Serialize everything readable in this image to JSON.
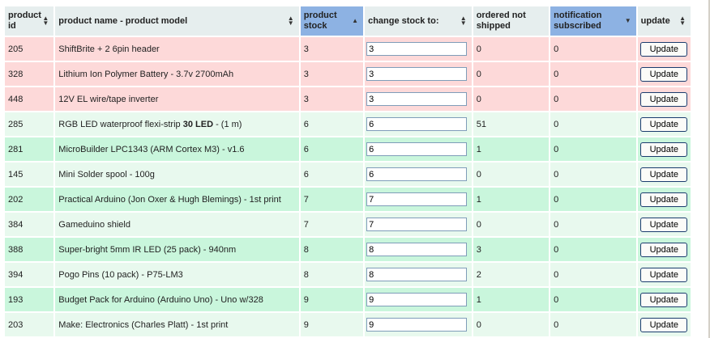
{
  "columns": {
    "product_id": "product id",
    "product_name": "product name - product model",
    "product_stock": "product stock",
    "change_stock": "change stock to:",
    "ordered_not_shipped": "ordered not shipped",
    "notification_subscribed": "notification subscribed",
    "update": "update"
  },
  "update_label": "Update",
  "row_colors": {
    "low": "#fdd9d9",
    "ok_light": "#e8f9ee",
    "ok_dark": "#c9f6dc",
    "sorted_header": "#8db2e3"
  },
  "rows": [
    {
      "id": "205",
      "name": "ShiftBrite + 2 6pin header",
      "name_bold": "",
      "name_tail": "",
      "stock": "3",
      "change": "3",
      "ordered": "0",
      "notify": "0",
      "status": "low"
    },
    {
      "id": "328",
      "name": "Lithium Ion Polymer Battery - 3.7v 2700mAh",
      "name_bold": "",
      "name_tail": "",
      "stock": "3",
      "change": "3",
      "ordered": "0",
      "notify": "0",
      "status": "low"
    },
    {
      "id": "448",
      "name": "12V EL wire/tape inverter",
      "name_bold": "",
      "name_tail": "",
      "stock": "3",
      "change": "3",
      "ordered": "0",
      "notify": "0",
      "status": "low"
    },
    {
      "id": "285",
      "name": "RGB LED waterproof flexi-strip ",
      "name_bold": "30 LED",
      "name_tail": " - (1 m)",
      "stock": "6",
      "change": "6",
      "ordered": "51",
      "notify": "0",
      "status": "ok"
    },
    {
      "id": "281",
      "name": "MicroBuilder LPC1343 (ARM Cortex M3) - v1.6",
      "name_bold": "",
      "name_tail": "",
      "stock": "6",
      "change": "6",
      "ordered": "1",
      "notify": "0",
      "status": "ok"
    },
    {
      "id": "145",
      "name": "Mini Solder spool - 100g",
      "name_bold": "",
      "name_tail": "",
      "stock": "6",
      "change": "6",
      "ordered": "0",
      "notify": "0",
      "status": "ok"
    },
    {
      "id": "202",
      "name": "Practical Arduino (Jon Oxer & Hugh Blemings) - 1st print",
      "name_bold": "",
      "name_tail": "",
      "stock": "7",
      "change": "7",
      "ordered": "1",
      "notify": "0",
      "status": "ok"
    },
    {
      "id": "384",
      "name": "Gameduino shield",
      "name_bold": "",
      "name_tail": "",
      "stock": "7",
      "change": "7",
      "ordered": "0",
      "notify": "0",
      "status": "ok"
    },
    {
      "id": "388",
      "name": "Super-bright 5mm IR LED (25 pack) - 940nm",
      "name_bold": "",
      "name_tail": "",
      "stock": "8",
      "change": "8",
      "ordered": "3",
      "notify": "0",
      "status": "ok"
    },
    {
      "id": "394",
      "name": "Pogo Pins (10 pack) - P75-LM3",
      "name_bold": "",
      "name_tail": "",
      "stock": "8",
      "change": "8",
      "ordered": "2",
      "notify": "0",
      "status": "ok"
    },
    {
      "id": "193",
      "name": "Budget Pack for Arduino (Arduino Uno) - Uno w/328",
      "name_bold": "",
      "name_tail": "",
      "stock": "9",
      "change": "9",
      "ordered": "1",
      "notify": "0",
      "status": "ok"
    },
    {
      "id": "203",
      "name": "Make: Electronics (Charles Platt) - 1st print",
      "name_bold": "",
      "name_tail": "",
      "stock": "9",
      "change": "9",
      "ordered": "0",
      "notify": "0",
      "status": "ok"
    }
  ]
}
